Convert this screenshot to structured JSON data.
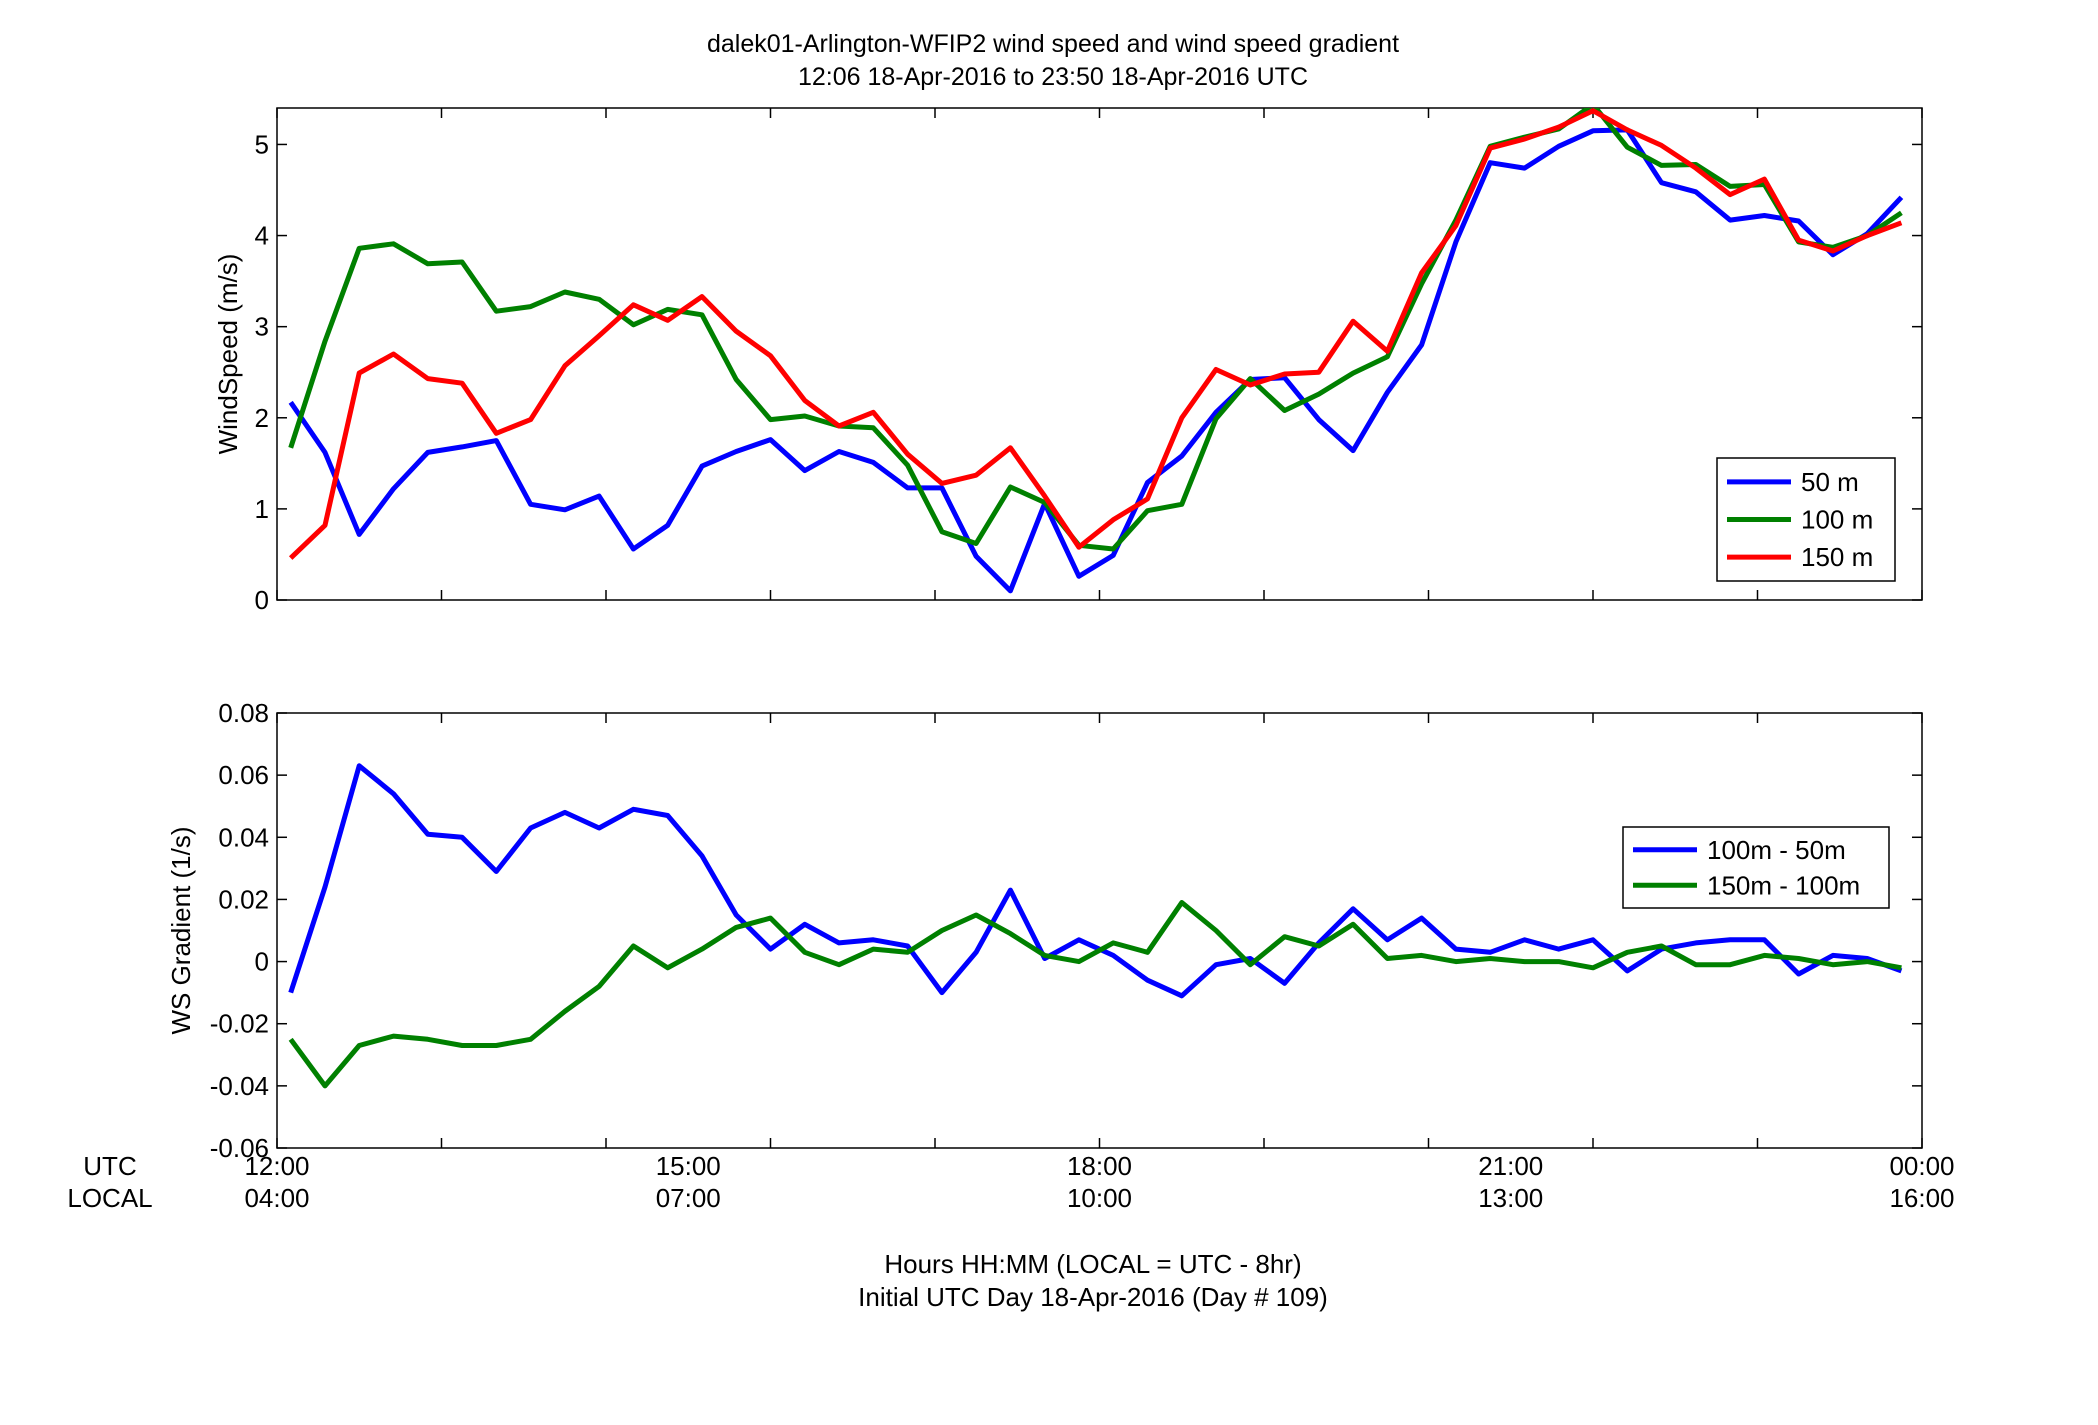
{
  "title_line1": "dalek01-Arlington-WFIP2  wind speed and wind speed gradient",
  "title_line2": "12:06 18-Apr-2016 to 23:50 18-Apr-2016  UTC",
  "bottom_labels": {
    "utc": "UTC",
    "local": "LOCAL",
    "utc_ticks": [
      "12:00",
      "15:00",
      "18:00",
      "21:00",
      "00:00"
    ],
    "local_ticks": [
      "04:00",
      "07:00",
      "10:00",
      "13:00",
      "16:00"
    ],
    "xlabel_line1": "Hours HH:MM  (LOCAL = UTC - 8hr)",
    "xlabel_line2": "Initial UTC Day 18-Apr-2016 (Day # 109)"
  },
  "colors": {
    "blue": "#0000ff",
    "green": "#008000",
    "red": "#ff0000"
  },
  "chart_data": [
    {
      "type": "line",
      "ylabel": "WindSpeed (m/s)",
      "xlim": [
        12.0,
        24.0
      ],
      "ylim": [
        0,
        5.4
      ],
      "yticks": [
        0,
        1,
        2,
        3,
        4,
        5
      ],
      "ytick_labels": [
        "0",
        "1",
        "2",
        "3",
        "4",
        "5"
      ],
      "xticks": [
        12,
        13.2,
        14.4,
        15.6,
        16.8,
        18,
        19.2,
        20.4,
        21.6,
        22.8,
        24
      ],
      "legend_position": "bottom-right",
      "x": [
        12.1,
        12.35,
        12.6,
        12.85,
        13.1,
        13.35,
        13.6,
        13.85,
        14.1,
        14.35,
        14.6,
        14.85,
        15.1,
        15.35,
        15.6,
        15.85,
        16.1,
        16.35,
        16.6,
        16.85,
        17.1,
        17.35,
        17.6,
        17.85,
        18.1,
        18.35,
        18.6,
        18.85,
        19.1,
        19.35,
        19.6,
        19.85,
        20.1,
        20.35,
        20.6,
        20.85,
        21.1,
        21.35,
        21.6,
        21.85,
        22.1,
        22.35,
        22.6,
        22.85,
        23.1,
        23.35,
        23.6,
        23.85
      ],
      "series": [
        {
          "name": "50 m",
          "color": "#0000ff",
          "values": [
            2.17,
            1.62,
            0.72,
            1.22,
            1.62,
            1.68,
            1.75,
            1.05,
            0.99,
            1.14,
            0.56,
            0.82,
            1.47,
            1.63,
            1.76,
            1.42,
            1.63,
            1.51,
            1.23,
            1.23,
            0.48,
            0.1,
            1.06,
            0.26,
            0.49,
            1.29,
            1.58,
            2.06,
            2.42,
            2.44,
            1.98,
            1.64,
            2.28,
            2.8,
            3.93,
            4.8,
            4.74,
            4.98,
            5.15,
            5.16,
            4.58,
            4.48,
            4.17,
            4.22,
            4.16,
            3.79,
            4.02,
            4.42
          ]
        },
        {
          "name": "100 m",
          "color": "#008000",
          "values": [
            1.67,
            2.84,
            3.86,
            3.91,
            3.69,
            3.71,
            3.17,
            3.22,
            3.38,
            3.3,
            3.02,
            3.19,
            3.13,
            2.42,
            1.98,
            2.02,
            1.91,
            1.89,
            1.48,
            0.75,
            0.62,
            1.24,
            1.07,
            0.6,
            0.56,
            0.98,
            1.05,
            1.99,
            2.43,
            2.08,
            2.26,
            2.49,
            2.67,
            3.47,
            4.17,
            4.98,
            5.08,
            5.17,
            5.44,
            4.97,
            4.77,
            4.78,
            4.54,
            4.56,
            3.93,
            3.87,
            4.0,
            4.25
          ]
        },
        {
          "name": "150 m",
          "color": "#ff0000",
          "values": [
            0.46,
            0.82,
            2.49,
            2.7,
            2.43,
            2.38,
            1.83,
            1.98,
            2.57,
            2.9,
            3.24,
            3.07,
            3.33,
            2.95,
            2.68,
            2.19,
            1.91,
            2.06,
            1.6,
            1.28,
            1.37,
            1.67,
            1.14,
            0.58,
            0.88,
            1.11,
            2.0,
            2.53,
            2.36,
            2.48,
            2.5,
            3.06,
            2.73,
            3.59,
            4.11,
            4.96,
            5.06,
            5.19,
            5.37,
            5.16,
            4.99,
            4.74,
            4.45,
            4.62,
            3.95,
            3.83,
            4.0,
            4.14
          ]
        }
      ]
    },
    {
      "type": "line",
      "ylabel": "WS Gradient (1/s)",
      "xlim": [
        12.0,
        24.0
      ],
      "ylim": [
        -0.06,
        0.08
      ],
      "yticks": [
        -0.06,
        -0.04,
        -0.02,
        0,
        0.02,
        0.04,
        0.06,
        0.08
      ],
      "ytick_labels": [
        "-0.06",
        "-0.04",
        "-0.02",
        "0",
        "0.02",
        "0.04",
        "0.06",
        "0.08"
      ],
      "xticks": [
        12,
        13.2,
        14.4,
        15.6,
        16.8,
        18,
        19.2,
        20.4,
        21.6,
        22.8,
        24
      ],
      "legend_position": "right",
      "x": [
        12.1,
        12.35,
        12.6,
        12.85,
        13.1,
        13.35,
        13.6,
        13.85,
        14.1,
        14.35,
        14.6,
        14.85,
        15.1,
        15.35,
        15.6,
        15.85,
        16.1,
        16.35,
        16.6,
        16.85,
        17.1,
        17.35,
        17.6,
        17.85,
        18.1,
        18.35,
        18.6,
        18.85,
        19.1,
        19.35,
        19.6,
        19.85,
        20.1,
        20.35,
        20.6,
        20.85,
        21.1,
        21.35,
        21.6,
        21.85,
        22.1,
        22.35,
        22.6,
        22.85,
        23.1,
        23.35,
        23.6,
        23.85
      ],
      "series": [
        {
          "name": "100m - 50m",
          "color": "#0000ff",
          "values": [
            -0.01,
            0.024,
            0.063,
            0.054,
            0.041,
            0.04,
            0.029,
            0.043,
            0.048,
            0.043,
            0.049,
            0.047,
            0.034,
            0.015,
            0.004,
            0.012,
            0.006,
            0.007,
            0.005,
            -0.01,
            0.003,
            0.023,
            0.001,
            0.007,
            0.002,
            -0.006,
            -0.011,
            -0.001,
            0.001,
            -0.007,
            0.006,
            0.017,
            0.007,
            0.014,
            0.004,
            0.003,
            0.007,
            0.004,
            0.007,
            -0.003,
            0.004,
            0.006,
            0.007,
            0.007,
            -0.004,
            0.002,
            0.001,
            -0.003
          ]
        },
        {
          "name": "150m - 100m",
          "color": "#008000",
          "values": [
            -0.025,
            -0.04,
            -0.027,
            -0.024,
            -0.025,
            -0.027,
            -0.027,
            -0.025,
            -0.016,
            -0.008,
            0.005,
            -0.002,
            0.004,
            0.011,
            0.014,
            0.003,
            -0.001,
            0.004,
            0.003,
            0.01,
            0.015,
            0.009,
            0.002,
            0.0,
            0.006,
            0.003,
            0.019,
            0.01,
            -0.001,
            0.008,
            0.005,
            0.012,
            0.001,
            0.002,
            0.0,
            0.001,
            0.0,
            0.0,
            -0.002,
            0.003,
            0.005,
            -0.001,
            -0.001,
            0.002,
            0.001,
            -0.001,
            0.0,
            -0.002
          ]
        }
      ]
    }
  ]
}
